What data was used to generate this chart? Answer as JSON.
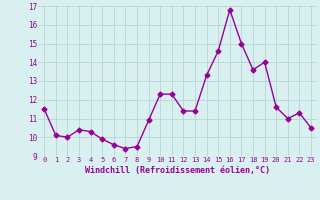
{
  "x": [
    0,
    1,
    2,
    3,
    4,
    5,
    6,
    7,
    8,
    9,
    10,
    11,
    12,
    13,
    14,
    15,
    16,
    17,
    18,
    19,
    20,
    21,
    22,
    23
  ],
  "y": [
    11.5,
    10.1,
    10.0,
    10.4,
    10.3,
    9.9,
    9.6,
    9.4,
    9.5,
    10.9,
    12.3,
    12.3,
    11.4,
    11.4,
    13.3,
    14.6,
    16.8,
    15.0,
    13.6,
    14.0,
    11.6,
    11.0,
    11.3,
    10.5
  ],
  "line_color": "#990099",
  "marker": "D",
  "marker_size": 2.5,
  "line_width": 1.0,
  "bg_color": "#d8f0f0",
  "grid_color": "#b0cece",
  "xlabel": "Windchill (Refroidissement éolien,°C)",
  "xlabel_color": "#990099",
  "tick_color": "#990099",
  "ylim": [
    9,
    17
  ],
  "xlim": [
    -0.5,
    23.5
  ],
  "yticks": [
    9,
    10,
    11,
    12,
    13,
    14,
    15,
    16,
    17
  ],
  "xtick_labels": [
    "0",
    "1",
    "2",
    "3",
    "4",
    "5",
    "6",
    "7",
    "8",
    "9",
    "10",
    "11",
    "12",
    "13",
    "14",
    "15",
    "16",
    "17",
    "18",
    "19",
    "20",
    "21",
    "22",
    "23"
  ]
}
